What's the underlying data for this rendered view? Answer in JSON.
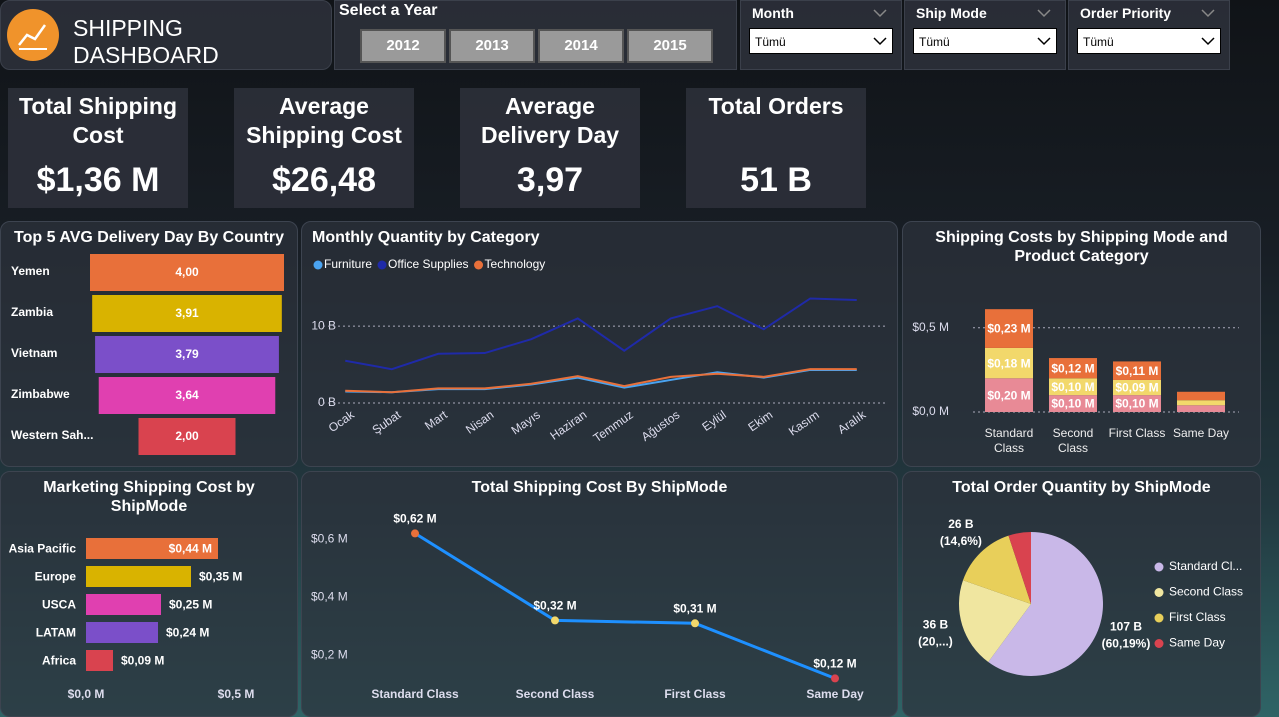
{
  "header": {
    "title": "SHIPPING DASHBOARD"
  },
  "year_slicer": {
    "label": "Select a Year",
    "options": [
      "2012",
      "2013",
      "2014",
      "2015"
    ]
  },
  "filters": [
    {
      "label": "Month",
      "value": "Tümü"
    },
    {
      "label": "Ship Mode",
      "value": "Tümü"
    },
    {
      "label": "Order Priority",
      "value": "Tümü"
    }
  ],
  "kpis": [
    {
      "title": "Total Shipping Cost",
      "value": "$1,36 M"
    },
    {
      "title": "Average Shipping Cost",
      "value": "$26,48"
    },
    {
      "title": "Average Delivery Day",
      "value": "3,97"
    },
    {
      "title": "Total Orders",
      "value": "51 B"
    }
  ],
  "chart_data": [
    {
      "type": "funnel",
      "title": "Top 5 AVG Delivery Day By Country",
      "categories": [
        "Yemen",
        "Zambia",
        "Vietnam",
        "Zimbabwe",
        "Western Sah..."
      ],
      "values": [
        4.0,
        3.91,
        3.79,
        3.64,
        2.0
      ],
      "value_labels": [
        "4,00",
        "3,91",
        "3,79",
        "3,64",
        "2,00"
      ],
      "colors": [
        "#e8703a",
        "#d9b300",
        "#7b4fc9",
        "#e040b0",
        "#d9434f"
      ]
    },
    {
      "type": "line",
      "title": "Monthly Quantity by Category",
      "categories": [
        "Ocak",
        "Şubat",
        "Mart",
        "Nisan",
        "Mayıs",
        "Haziran",
        "Temmuz",
        "Ağustos",
        "Eylül",
        "Ekim",
        "Kasım",
        "Aralık"
      ],
      "series": [
        {
          "name": "Furniture",
          "color": "#4aa3f0",
          "values": [
            1.5,
            1.4,
            1.8,
            1.8,
            2.4,
            3.3,
            2.0,
            3.0,
            4.0,
            3.3,
            4.3,
            4.3
          ]
        },
        {
          "name": "Office Supplies",
          "color": "#1f2aa8",
          "values": [
            5.5,
            4.4,
            6.4,
            6.5,
            8.3,
            11.0,
            6.8,
            11.0,
            12.6,
            9.6,
            13.6,
            13.4
          ]
        },
        {
          "name": "Technology",
          "color": "#e8703a",
          "values": [
            1.6,
            1.4,
            1.9,
            1.9,
            2.5,
            3.5,
            2.2,
            3.4,
            3.8,
            3.4,
            4.4,
            4.4
          ]
        }
      ],
      "ylim": [
        0,
        16
      ],
      "yticks": [
        {
          "value": 0,
          "label": "0 B"
        },
        {
          "value": 10,
          "label": "10 B"
        }
      ],
      "grid": true
    },
    {
      "type": "stacked_bar",
      "title": "Shipping Costs by Shipping Mode and Product Category",
      "categories": [
        "Standard Class",
        "Second Class",
        "First Class",
        "Same Day"
      ],
      "series": [
        {
          "color": "#e88a96",
          "values": [
            0.2,
            0.1,
            0.1,
            0.04
          ],
          "value_labels": [
            "$0,20 M",
            "$0,10 M",
            "$0,10 M",
            null
          ]
        },
        {
          "color": "#f2d86b",
          "values": [
            0.18,
            0.1,
            0.09,
            0.03
          ],
          "value_labels": [
            "$0,18 M",
            "$0,10 M",
            "$0,09 M",
            null
          ]
        },
        {
          "color": "#e8703a",
          "values": [
            0.23,
            0.12,
            0.11,
            0.05
          ],
          "value_labels": [
            "$0,23 M",
            "$0,12 M",
            "$0,11 M",
            null
          ]
        }
      ],
      "ylim": [
        0,
        0.7
      ],
      "yticks": [
        {
          "value": 0,
          "label": "$0,0 M"
        },
        {
          "value": 0.5,
          "label": "$0,5 M"
        }
      ],
      "grid": true
    },
    {
      "type": "hbar",
      "title": "Marketing Shipping Cost by ShipMode",
      "categories": [
        "Asia Pacific",
        "Europe",
        "USCA",
        "LATAM",
        "Africa"
      ],
      "values": [
        0.44,
        0.35,
        0.25,
        0.24,
        0.09
      ],
      "value_labels": [
        "$0,44 M",
        "$0,35 M",
        "$0,25 M",
        "$0,24 M",
        "$0,09 M"
      ],
      "colors": [
        "#e8703a",
        "#d9b300",
        "#e040b0",
        "#7b4fc9",
        "#d9434f"
      ],
      "xlim": [
        0,
        0.5
      ],
      "xticks": [
        {
          "value": 0,
          "label": "$0,0 M"
        },
        {
          "value": 0.5,
          "label": "$0,5 M"
        }
      ]
    },
    {
      "type": "line",
      "title": "Total Shipping Cost By ShipMode",
      "categories": [
        "Standard Class",
        "Second Class",
        "First Class",
        "Same Day"
      ],
      "values": [
        0.62,
        0.32,
        0.31,
        0.12
      ],
      "value_labels": [
        "$0,62 M",
        "$0,32 M",
        "$0,31 M",
        "$0,12 M"
      ],
      "color": "#1e90ff",
      "point_colors": [
        "#e8703a",
        "#f2d86b",
        "#f2d86b",
        "#d9434f"
      ],
      "ylim": [
        0.08,
        0.68
      ],
      "yticks": [
        {
          "value": 0.2,
          "label": "$0,2 M"
        },
        {
          "value": 0.4,
          "label": "$0,4 M"
        },
        {
          "value": 0.6,
          "label": "$0,6 M"
        }
      ]
    },
    {
      "type": "pie",
      "title": "Total Order Quantity by ShipMode",
      "categories": [
        "Standard Cl...",
        "Second Class",
        "First Class",
        "Same Day"
      ],
      "values": [
        107,
        36,
        26,
        9
      ],
      "value_labels": [
        "107 B",
        "36 B",
        "26 B",
        null
      ],
      "percent_labels": [
        "(60,19%)",
        "(20,...)",
        "(14,6%)",
        null
      ],
      "colors": [
        "#c9b8e8",
        "#f0e6a0",
        "#e8cf5a",
        "#d9434f"
      ]
    }
  ]
}
